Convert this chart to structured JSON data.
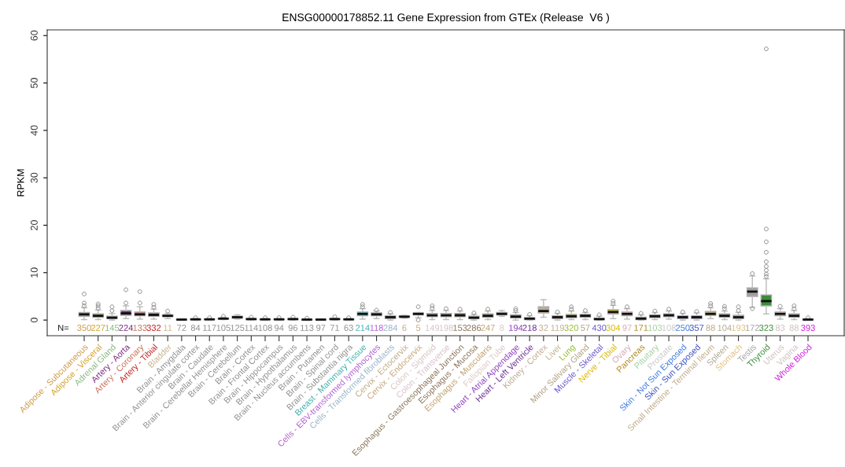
{
  "chart_data": {
    "type": "box",
    "title": "ENSG00000178852.11 Gene Expression from GTEx (Release  V6 )",
    "ylabel": "RPKM",
    "categories": [
      "Adipose - Subcutaneous",
      "Adipose - Visceral",
      "Adrenal Gland",
      "Artery - Aorta",
      "Artery - Coronary",
      "Artery - Tibial",
      "Bladder",
      "Brain - Amygdala",
      "Brain - Anterior cingulate cortex",
      "Brain - Caudate",
      "Brain - Cerebellar Hemisphere",
      "Brain - Cerebellum",
      "Brain - Cortex",
      "Brain - Frontal Cortex",
      "Brain - Hippocampus",
      "Brain - Hypothalamus",
      "Brain - Nucleus accumbens",
      "Brain - Putamen",
      "Brain - Spinal cord",
      "Brain - Substantia nigra",
      "Breast - Mammary Tissue",
      "Cells - EBV-transformed lymphocytes",
      "Cells - Transformed fibroblasts",
      "Cervix - Ectocervix",
      "Cervix - Endocervix",
      "Colon - Sigmoid",
      "Colon - Transverse",
      "Esophagus - Gastroesophageal Junction",
      "Esophagus - Mucosa",
      "Esophagus - Muscularis",
      "Fallopian Tube",
      "Heart - Atrial Appendage",
      "Heart - Left Ventricle",
      "Kidney - Cortex",
      "Liver",
      "Lung",
      "Minor Salivary Gland",
      "Muscle - Skeletal",
      "Nerve - Tibial",
      "Ovary",
      "Pancreas",
      "Pituitary",
      "Prostate",
      "Skin - Not Sun Exposed",
      "Skin - Sun Exposed",
      "Small Intestine - Terminal Ileum",
      "Spleen",
      "Stomach",
      "Testis",
      "Thyroid",
      "Uterus",
      "Vagina",
      "Whole Blood"
    ],
    "colors": [
      "#cc9a4a",
      "#d4a020",
      "#88b880",
      "#7a2a80",
      "#c87058",
      "#c02020",
      "#c8b48c",
      "#909090",
      "#909090",
      "#909090",
      "#909090",
      "#909090",
      "#909090",
      "#909090",
      "#909090",
      "#909090",
      "#909090",
      "#909090",
      "#909090",
      "#909090",
      "#40b0b0",
      "#b060d0",
      "#98b4c8",
      "#c0aa88",
      "#c8a878",
      "#d8c4c4",
      "#d8c0c8",
      "#8a7458",
      "#8a7458",
      "#c0a070",
      "#dcc8c8",
      "#9040c0",
      "#6a3090",
      "#c0aa90",
      "#c0b090",
      "#99bb33",
      "#b0a080",
      "#6a5acd",
      "#d8b800",
      "#d8a8b8",
      "#b08820",
      "#a0d0a0",
      "#c8c8c8",
      "#3a7ae0",
      "#3a50c0",
      "#c0aa88",
      "#b0a890",
      "#e0c080",
      "#a0a0a0",
      "#3c8c3c",
      "#d0c0c0",
      "#d0c0c0",
      "#d020e0"
    ],
    "boxes": [
      {
        "low": 0.1,
        "q1": 0.8,
        "median": 1.2,
        "q3": 1.6,
        "high": 2.6,
        "outliers": [
          3.0,
          3.6,
          5.5
        ]
      },
      {
        "low": 0.1,
        "q1": 0.6,
        "median": 0.9,
        "q3": 1.3,
        "high": 2.1,
        "outliers": [
          2.5,
          3.0,
          3.4
        ]
      },
      {
        "low": 0.0,
        "q1": 0.3,
        "median": 0.5,
        "q3": 0.8,
        "high": 1.4,
        "outliers": [
          2.0,
          2.8
        ]
      },
      {
        "low": 0.3,
        "q1": 1.0,
        "median": 1.4,
        "q3": 2.0,
        "high": 3.0,
        "outliers": [
          3.6,
          6.4
        ]
      },
      {
        "low": 0.2,
        "q1": 0.9,
        "median": 1.2,
        "q3": 1.7,
        "high": 2.8,
        "outliers": [
          3.6,
          6.0
        ]
      },
      {
        "low": 0.2,
        "q1": 0.8,
        "median": 1.1,
        "q3": 1.5,
        "high": 2.3,
        "outliers": [
          2.7,
          3.3
        ]
      },
      {
        "low": 0.3,
        "q1": 0.7,
        "median": 0.9,
        "q3": 1.1,
        "high": 1.4,
        "outliers": [
          1.9
        ]
      },
      {
        "low": 0.0,
        "q1": 0.05,
        "median": 0.1,
        "q3": 0.15,
        "high": 0.25
      },
      {
        "low": 0.0,
        "q1": 0.1,
        "median": 0.15,
        "q3": 0.2,
        "high": 0.3,
        "outliers": [
          0.5
        ]
      },
      {
        "low": 0.0,
        "q1": 0.1,
        "median": 0.15,
        "q3": 0.2,
        "high": 0.3,
        "outliers": [
          0.5
        ]
      },
      {
        "low": 0.1,
        "q1": 0.2,
        "median": 0.3,
        "q3": 0.4,
        "high": 0.6,
        "outliers": [
          0.8
        ]
      },
      {
        "low": 0.2,
        "q1": 0.4,
        "median": 0.6,
        "q3": 0.8,
        "high": 1.1
      },
      {
        "low": 0.0,
        "q1": 0.1,
        "median": 0.2,
        "q3": 0.3,
        "high": 0.4,
        "outliers": [
          0.6
        ]
      },
      {
        "low": 0.0,
        "q1": 0.1,
        "median": 0.15,
        "q3": 0.2,
        "high": 0.3,
        "outliers": [
          0.5
        ]
      },
      {
        "low": 0.0,
        "q1": 0.1,
        "median": 0.15,
        "q3": 0.2,
        "high": 0.3,
        "outliers": [
          0.5
        ]
      },
      {
        "low": 0.0,
        "q1": 0.1,
        "median": 0.2,
        "q3": 0.3,
        "high": 0.4,
        "outliers": [
          0.6
        ]
      },
      {
        "low": 0.0,
        "q1": 0.05,
        "median": 0.1,
        "q3": 0.15,
        "high": 0.25,
        "outliers": [
          0.4
        ]
      },
      {
        "low": 0.0,
        "q1": 0.05,
        "median": 0.1,
        "q3": 0.15,
        "high": 0.2
      },
      {
        "low": 0.0,
        "q1": 0.1,
        "median": 0.2,
        "q3": 0.3,
        "high": 0.4,
        "outliers": [
          0.7
        ]
      },
      {
        "low": 0.0,
        "q1": 0.1,
        "median": 0.15,
        "q3": 0.2,
        "high": 0.3,
        "outliers": [
          0.5
        ]
      },
      {
        "low": 0.2,
        "q1": 0.9,
        "median": 1.3,
        "q3": 1.7,
        "high": 2.4,
        "outliers": [
          2.8,
          3.3
        ]
      },
      {
        "low": 0.3,
        "q1": 0.9,
        "median": 1.2,
        "q3": 1.5,
        "high": 1.9,
        "outliers": [
          2.1
        ]
      },
      {
        "low": 0.0,
        "q1": 0.3,
        "median": 0.6,
        "q3": 0.9,
        "high": 1.3,
        "outliers": [
          1.6
        ]
      },
      {
        "low": 0.4,
        "q1": 0.6,
        "median": 0.7,
        "q3": 0.9,
        "high": 1.0
      },
      {
        "low": 0.5,
        "q1": 1.1,
        "median": 1.3,
        "q3": 1.5,
        "high": 1.6,
        "outliers": [
          0.0,
          2.8
        ]
      },
      {
        "low": 0.1,
        "q1": 0.7,
        "median": 1.0,
        "q3": 1.4,
        "high": 2.0,
        "outliers": [
          2.5,
          3.0
        ]
      },
      {
        "low": 0.1,
        "q1": 0.7,
        "median": 1.0,
        "q3": 1.4,
        "high": 2.0,
        "outliers": [
          2.4
        ]
      },
      {
        "low": 0.1,
        "q1": 0.7,
        "median": 1.0,
        "q3": 1.4,
        "high": 1.9,
        "outliers": [
          2.3
        ]
      },
      {
        "low": 0.0,
        "q1": 0.3,
        "median": 0.5,
        "q3": 0.8,
        "high": 1.2,
        "outliers": [
          1.5
        ]
      },
      {
        "low": 0.1,
        "q1": 0.6,
        "median": 0.9,
        "q3": 1.3,
        "high": 1.9,
        "outliers": [
          2.3
        ]
      },
      {
        "low": 0.8,
        "q1": 1.1,
        "median": 1.3,
        "q3": 1.6,
        "high": 2.0
      },
      {
        "low": 0.0,
        "q1": 0.5,
        "median": 0.7,
        "q3": 1.1,
        "high": 1.6,
        "outliers": [
          2.0,
          2.4
        ]
      },
      {
        "low": 0.0,
        "q1": 0.1,
        "median": 0.3,
        "q3": 0.5,
        "high": 0.9,
        "outliers": [
          1.2
        ]
      },
      {
        "low": 0.6,
        "q1": 1.5,
        "median": 1.9,
        "q3": 2.8,
        "high": 4.3
      },
      {
        "low": 0.0,
        "q1": 0.3,
        "median": 0.6,
        "q3": 0.9,
        "high": 1.4,
        "outliers": [
          1.7
        ]
      },
      {
        "low": 0.1,
        "q1": 0.5,
        "median": 0.8,
        "q3": 1.2,
        "high": 1.9,
        "outliers": [
          2.3,
          2.8
        ]
      },
      {
        "low": 0.1,
        "q1": 0.6,
        "median": 0.9,
        "q3": 1.2,
        "high": 1.6,
        "outliers": [
          2.0
        ]
      },
      {
        "low": 0.0,
        "q1": 0.1,
        "median": 0.2,
        "q3": 0.4,
        "high": 0.8,
        "outliers": [
          1.1
        ]
      },
      {
        "low": 0.3,
        "q1": 1.3,
        "median": 1.7,
        "q3": 2.2,
        "high": 3.1,
        "outliers": [
          3.5,
          4.0
        ]
      },
      {
        "low": 0.2,
        "q1": 0.9,
        "median": 1.3,
        "q3": 1.7,
        "high": 2.4,
        "outliers": [
          2.8
        ]
      },
      {
        "low": 0.0,
        "q1": 0.1,
        "median": 0.3,
        "q3": 0.6,
        "high": 1.1,
        "outliers": [
          1.4
        ]
      },
      {
        "low": 0.1,
        "q1": 0.5,
        "median": 0.8,
        "q3": 1.1,
        "high": 1.6,
        "outliers": [
          1.9
        ]
      },
      {
        "low": 0.2,
        "q1": 0.7,
        "median": 1.0,
        "q3": 1.3,
        "high": 1.9,
        "outliers": [
          2.3
        ]
      },
      {
        "low": 0.0,
        "q1": 0.3,
        "median": 0.6,
        "q3": 0.9,
        "high": 1.4,
        "outliers": [
          1.7
        ]
      },
      {
        "low": 0.0,
        "q1": 0.3,
        "median": 0.6,
        "q3": 0.9,
        "high": 1.5,
        "outliers": [
          1.8
        ]
      },
      {
        "low": 0.3,
        "q1": 1.0,
        "median": 1.3,
        "q3": 1.8,
        "high": 2.6,
        "outliers": [
          3.0,
          3.5
        ]
      },
      {
        "low": 0.1,
        "q1": 0.6,
        "median": 0.9,
        "q3": 1.3,
        "high": 1.9,
        "outliers": [
          2.4,
          2.9
        ]
      },
      {
        "low": 0.0,
        "q1": 0.3,
        "median": 0.6,
        "q3": 1.0,
        "high": 1.6,
        "outliers": [
          2.0,
          2.8
        ]
      },
      {
        "low": 2.7,
        "q1": 5.0,
        "median": 6.0,
        "q3": 6.8,
        "high": 9.3,
        "outliers": [
          2.4,
          9.8
        ]
      },
      {
        "low": 1.3,
        "q1": 3.0,
        "median": 4.0,
        "q3": 5.3,
        "high": 8.7,
        "outliers": [
          9.2,
          9.7,
          10.5,
          11.3,
          12.3,
          14.3,
          16.5,
          19.2,
          57.2
        ]
      },
      {
        "low": 0.2,
        "q1": 0.9,
        "median": 1.3,
        "q3": 1.7,
        "high": 2.4,
        "outliers": [
          2.9
        ]
      },
      {
        "low": 0.1,
        "q1": 0.6,
        "median": 0.9,
        "q3": 1.3,
        "high": 2.0,
        "outliers": [
          2.4,
          3.0
        ]
      },
      {
        "low": 0.0,
        "q1": 0.05,
        "median": 0.1,
        "q3": 0.2,
        "high": 0.3,
        "outliers": [
          0.5
        ]
      }
    ],
    "ylim": [
      -3.3,
      61.2
    ],
    "yticks": [
      0,
      10,
      20,
      30,
      40,
      50,
      60
    ],
    "grid": false,
    "annotations": [
      "N=",
      "350",
      "227",
      "145",
      "224",
      "133",
      "332",
      "11",
      "72",
      "84",
      "117",
      "105",
      "125",
      "114",
      "108",
      "94",
      "96",
      "113",
      "97",
      "71",
      "63",
      "214",
      "118",
      "284",
      "6",
      "5",
      "149",
      "198",
      "153",
      "286",
      "247",
      "8",
      "194",
      "218",
      "32",
      "119",
      "320",
      "57",
      "430",
      "304",
      "97",
      "171",
      "103",
      "108",
      "250",
      "357",
      "88",
      "104",
      "193",
      "172",
      "323",
      "83",
      "88",
      "393"
    ]
  }
}
